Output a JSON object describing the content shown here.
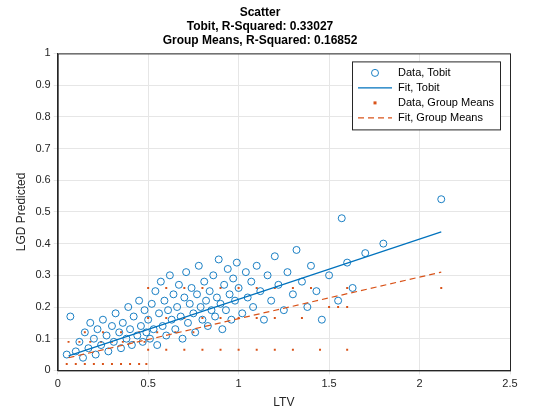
{
  "chart_data": {
    "type": "scatter",
    "title": [
      "Scatter",
      "Tobit, R-Squared: 0.33027",
      "Group Means, R-Squared: 0.16852"
    ],
    "x_label": "LTV",
    "y_label": "LGD Predicted",
    "xlim": [
      0,
      2.5
    ],
    "xticks": [
      0,
      0.5,
      1,
      1.5,
      2,
      2.5
    ],
    "ylim": [
      0,
      1
    ],
    "yticks": [
      0,
      0.1,
      0.2,
      0.3,
      0.4,
      0.5,
      0.6,
      0.7,
      0.8,
      0.9,
      1
    ],
    "grid": true,
    "legend": "northeast",
    "series": [
      {
        "name": "Data, Tobit",
        "color": "#0072bd",
        "type": "scatter",
        "marker": "circle",
        "line_style": "none",
        "x": [
          0.05,
          0.07,
          0.1,
          0.12,
          0.14,
          0.15,
          0.17,
          0.18,
          0.2,
          0.21,
          0.22,
          0.24,
          0.25,
          0.27,
          0.28,
          0.3,
          0.31,
          0.32,
          0.34,
          0.35,
          0.36,
          0.38,
          0.39,
          0.4,
          0.41,
          0.42,
          0.44,
          0.45,
          0.46,
          0.47,
          0.48,
          0.49,
          0.5,
          0.51,
          0.52,
          0.53,
          0.54,
          0.55,
          0.56,
          0.57,
          0.58,
          0.59,
          0.6,
          0.61,
          0.62,
          0.63,
          0.64,
          0.65,
          0.66,
          0.67,
          0.68,
          0.69,
          0.7,
          0.71,
          0.72,
          0.73,
          0.74,
          0.75,
          0.76,
          0.77,
          0.78,
          0.79,
          0.8,
          0.81,
          0.82,
          0.83,
          0.84,
          0.85,
          0.86,
          0.87,
          0.88,
          0.89,
          0.9,
          0.91,
          0.92,
          0.93,
          0.94,
          0.95,
          0.96,
          0.97,
          0.98,
          0.99,
          1.0,
          1.02,
          1.04,
          1.05,
          1.07,
          1.08,
          1.1,
          1.12,
          1.14,
          1.16,
          1.18,
          1.2,
          1.22,
          1.25,
          1.27,
          1.3,
          1.32,
          1.35,
          1.38,
          1.4,
          1.43,
          1.46,
          1.5,
          1.55,
          1.57,
          1.6,
          1.63,
          1.7,
          1.8,
          2.12
        ],
        "values": [
          0.05,
          0.17,
          0.06,
          0.09,
          0.04,
          0.12,
          0.07,
          0.15,
          0.1,
          0.05,
          0.13,
          0.08,
          0.16,
          0.11,
          0.06,
          0.14,
          0.09,
          0.18,
          0.12,
          0.07,
          0.15,
          0.1,
          0.2,
          0.13,
          0.08,
          0.17,
          0.11,
          0.22,
          0.14,
          0.09,
          0.19,
          0.12,
          0.16,
          0.1,
          0.21,
          0.13,
          0.25,
          0.08,
          0.18,
          0.28,
          0.14,
          0.22,
          0.11,
          0.19,
          0.3,
          0.16,
          0.24,
          0.13,
          0.2,
          0.27,
          0.17,
          0.1,
          0.23,
          0.31,
          0.15,
          0.21,
          0.26,
          0.18,
          0.12,
          0.24,
          0.33,
          0.2,
          0.16,
          0.28,
          0.22,
          0.14,
          0.25,
          0.19,
          0.3,
          0.17,
          0.23,
          0.35,
          0.21,
          0.13,
          0.27,
          0.19,
          0.32,
          0.24,
          0.16,
          0.29,
          0.22,
          0.34,
          0.26,
          0.18,
          0.31,
          0.23,
          0.28,
          0.2,
          0.33,
          0.25,
          0.16,
          0.3,
          0.22,
          0.36,
          0.27,
          0.19,
          0.31,
          0.24,
          0.38,
          0.28,
          0.2,
          0.33,
          0.25,
          0.16,
          0.3,
          0.22,
          0.48,
          0.34,
          0.26,
          0.37,
          0.4,
          0.54
        ]
      },
      {
        "name": "Fit, Tobit",
        "color": "#0072bd",
        "type": "line",
        "marker": "none",
        "line_style": "solid",
        "x": [
          0.06,
          2.12
        ],
        "values": [
          0.046,
          0.437
        ]
      },
      {
        "name": "Data, Group Means",
        "color": "#d95319",
        "type": "scatter",
        "marker": "square",
        "line_style": "none",
        "x": [
          0.05,
          0.1,
          0.15,
          0.2,
          0.25,
          0.3,
          0.35,
          0.4,
          0.45,
          0.49,
          0.06,
          0.12,
          0.18,
          0.24,
          0.3,
          0.36,
          0.42,
          0.48,
          0.15,
          0.25,
          0.35,
          0.45,
          0.55,
          0.65,
          0.75,
          0.5,
          0.6,
          0.7,
          0.8,
          0.9,
          1.0,
          1.1,
          1.2,
          1.3,
          1.45,
          1.6,
          0.5,
          0.6,
          0.7,
          0.8,
          0.9,
          1.0,
          1.1,
          1.2,
          1.35,
          0.5,
          0.6,
          0.7,
          0.8,
          0.9,
          1.0,
          1.1,
          1.2,
          1.3,
          1.4,
          1.6,
          2.12,
          1.5,
          1.55,
          1.6
        ],
        "values": [
          0.02,
          0.02,
          0.02,
          0.02,
          0.02,
          0.02,
          0.02,
          0.02,
          0.02,
          0.02,
          0.09,
          0.09,
          0.09,
          0.09,
          0.09,
          0.09,
          0.09,
          0.09,
          0.12,
          0.12,
          0.12,
          0.12,
          0.12,
          0.12,
          0.12,
          0.065,
          0.065,
          0.065,
          0.065,
          0.065,
          0.065,
          0.065,
          0.065,
          0.065,
          0.065,
          0.065,
          0.165,
          0.165,
          0.165,
          0.165,
          0.165,
          0.165,
          0.165,
          0.165,
          0.165,
          0.26,
          0.26,
          0.26,
          0.26,
          0.26,
          0.26,
          0.26,
          0.26,
          0.26,
          0.26,
          0.26,
          0.26,
          0.2,
          0.2,
          0.2
        ]
      },
      {
        "name": "Fit, Group Means",
        "color": "#d95319",
        "type": "line",
        "marker": "none",
        "line_style": "dashed",
        "x": [
          0.06,
          2.12
        ],
        "values": [
          0.04,
          0.31
        ]
      }
    ]
  }
}
